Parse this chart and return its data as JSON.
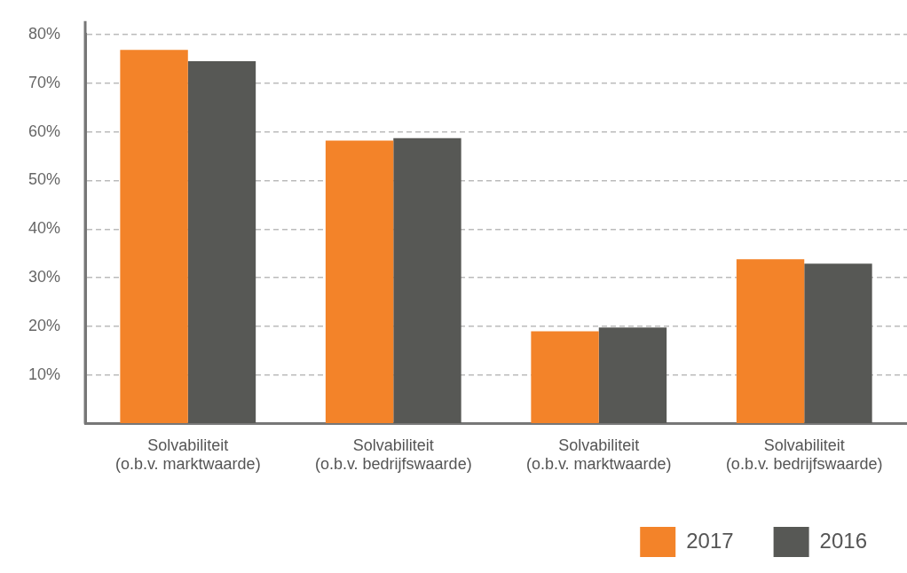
{
  "chart_data": {
    "type": "bar",
    "categories": [
      "Solvabiliteit\n(o.b.v. marktwaarde)",
      "Solvabiliteit\n(o.b.v. bedrijfswaarde)",
      "Solvabiliteit\n(o.b.v. marktwaarde)",
      "Solvabiliteit\n(o.b.v. bedrijfswaarde)"
    ],
    "series": [
      {
        "name": "2017",
        "color": "#f38329",
        "values": [
          76.8,
          58.2,
          19.0,
          33.8
        ]
      },
      {
        "name": "2016",
        "color": "#575855",
        "values": [
          74.5,
          58.7,
          19.8,
          32.9
        ]
      }
    ],
    "ylim": [
      0,
      80
    ],
    "yticks": [
      {
        "value": 0,
        "label": null
      },
      {
        "value": 10,
        "label": "10%"
      },
      {
        "value": 20,
        "label": "20%"
      },
      {
        "value": 30,
        "label": "30%"
      },
      {
        "value": 40,
        "label": "40%"
      },
      {
        "value": 50,
        "label": "50%"
      },
      {
        "value": 60,
        "label": "60%"
      },
      {
        "value": 70,
        "label": "70%"
      },
      {
        "value": 80,
        "label": "80%"
      }
    ],
    "grid": "y",
    "legend": "bottom right"
  }
}
